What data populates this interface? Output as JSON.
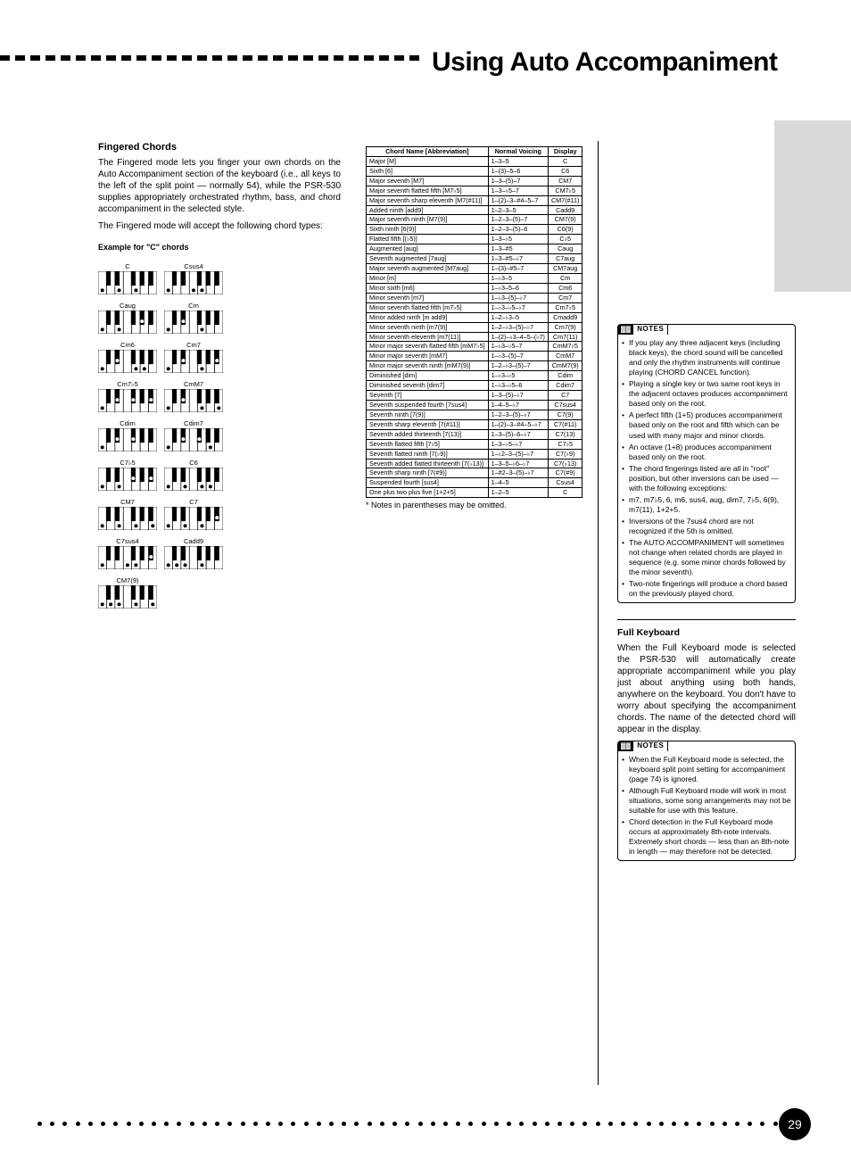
{
  "header": {
    "title": "Using Auto Accompaniment"
  },
  "left": {
    "intro_title": "Fingered Chords",
    "intro_para": "The Fingered mode lets you finger your own chords on the Auto Accompaniment section of the keyboard (i.e., all keys to the left of the split point — normally 54), while the PSR-530 supplies appropriately orchestrated rhythm, bass, and chord accompaniment in the selected style.",
    "intro2": "The Fingered mode will accept the following chord types:",
    "example_lbl": "Example for \"C\" chords",
    "chords": [
      {
        "row": [
          {
            "name": "C",
            "dots": [
              0,
              4,
              7
            ]
          },
          {
            "name": "Csus4",
            "dots": [
              0,
              5,
              7
            ]
          }
        ]
      },
      {
        "row": [
          {
            "name": "Caug",
            "dots": [
              0,
              4,
              8
            ]
          },
          {
            "name": "Cm",
            "dots": [
              0,
              3,
              7
            ]
          }
        ]
      },
      {
        "row": [
          {
            "name": "Cm6",
            "dots": [
              0,
              3,
              7,
              9
            ]
          },
          {
            "name": "Cm7",
            "dots": [
              0,
              3,
              7,
              10
            ]
          }
        ]
      },
      {
        "row": [
          {
            "name": "Cm7♭5",
            "dots": [
              0,
              3,
              6,
              10
            ]
          },
          {
            "name": "CmM7",
            "dots": [
              0,
              3,
              7,
              11
            ]
          }
        ]
      },
      {
        "row": [
          {
            "name": "Cdim",
            "dots": [
              0,
              3,
              6
            ]
          },
          {
            "name": "Cdim7",
            "dots": [
              0,
              3,
              6,
              9
            ]
          }
        ]
      },
      {
        "row": [
          {
            "name": "C7♭5",
            "dots": [
              0,
              4,
              6,
              10
            ]
          },
          {
            "name": "C6",
            "dots": [
              0,
              4,
              7,
              9
            ]
          }
        ]
      },
      {
        "row": [
          {
            "name": "CM7",
            "dots": [
              0,
              4,
              7,
              11
            ]
          },
          {
            "name": "C7",
            "dots": [
              0,
              4,
              7,
              10
            ]
          }
        ]
      },
      {
        "row": [
          {
            "name": "C7sus4",
            "dots": [
              0,
              5,
              7,
              10
            ]
          },
          {
            "name": "Cadd9",
            "dots": [
              0,
              2,
              4,
              7
            ]
          }
        ]
      },
      {
        "row": [
          {
            "name": "CM7(9)",
            "dots": [
              0,
              2,
              4,
              7,
              11
            ]
          }
        ]
      }
    ]
  },
  "mid": {
    "tbl_hdr": [
      "Chord Name [Abbreviation]",
      "Normal Voicing",
      "Display"
    ],
    "tbl": [
      [
        "Major [M]",
        "1–3–5",
        "C"
      ],
      [
        "Sixth [6]",
        "1–(3)–5–6",
        "C6"
      ],
      [
        "Major seventh [M7]",
        "1–3–(5)–7",
        "CM7"
      ],
      [
        "Major seventh flatted fifth [M7♭5]",
        "1–3–♭5–7",
        "CM7♭5"
      ],
      [
        "Major seventh sharp eleventh [M7(#11)]",
        "1–(2)–3–#4–5–7",
        "CM7(#11)"
      ],
      [
        "Added ninth [add9]",
        "1–2–3–5",
        "Cadd9"
      ],
      [
        "Major seventh ninth [M7(9)]",
        "1–2–3–(5)–7",
        "CM7(9)"
      ],
      [
        "Sixth ninth [6(9)]",
        "1–2–3–(5)–6",
        "C6(9)"
      ],
      [
        "Flatted fifth [(♭5)]",
        "1–3–♭5",
        "C♭5"
      ],
      [
        "Augmented [aug]",
        "1–3–#5",
        "Caug"
      ],
      [
        "Seventh augmented [7aug]",
        "1–3–#5–♭7",
        "C7aug"
      ],
      [
        "Major seventh augmented [M7aug]",
        "1–(3)–#5–7",
        "CM7aug"
      ],
      [
        "Minor [m]",
        "1–♭3–5",
        "Cm"
      ],
      [
        "Minor sixth [m6]",
        "1–♭3–5–6",
        "Cm6"
      ],
      [
        "Minor seventh [m7]",
        "1–♭3–(5)–♭7",
        "Cm7"
      ],
      [
        "Minor seventh flatted fifth [m7♭5]",
        "1–♭3–♭5–♭7",
        "Cm7♭5"
      ],
      [
        "Minor added ninth [m add9]",
        "1–2–♭3–5",
        "Cmadd9"
      ],
      [
        "Minor seventh ninth [m7(9)]",
        "1–2–♭3–(5)–♭7",
        "Cm7(9)"
      ],
      [
        "Minor seventh eleventh [m7(11)]",
        "1–(2)–♭3–4–5–(♭7)",
        "Cm7(11)"
      ],
      [
        "Minor major seventh flatted fifth [mM7♭5]",
        "1–♭3–♭5–7",
        "CmM7♭5"
      ],
      [
        "Minor major seventh [mM7]",
        "1–♭3–(5)–7",
        "CmM7"
      ],
      [
        "Minor major seventh ninth [mM7(9)]",
        "1–2–♭3–(5)–7",
        "CmM7(9)"
      ],
      [
        "Diminished [dim]",
        "1–♭3–♭5",
        "Cdim"
      ],
      [
        "Diminished seventh [dim7]",
        "1–♭3–♭5–6",
        "Cdim7"
      ],
      [
        "Seventh [7]",
        "1–3–(5)–♭7",
        "C7"
      ],
      [
        "Seventh suspended fourth [7sus4]",
        "1–4–5–♭7",
        "C7sus4"
      ],
      [
        "Seventh ninth [7(9)]",
        "1–2–3–(5)–♭7",
        "C7(9)"
      ],
      [
        "Seventh sharp eleventh [7(#11)]",
        "1–(2)–3–#4–5–♭7",
        "C7(#11)"
      ],
      [
        "Seventh added thirteenth [7(13)]",
        "1–3–(5)–6–♭7",
        "C7(13)"
      ],
      [
        "Seventh flatted fifth [7♭5]",
        "1–3–♭5–♭7",
        "C7♭5"
      ],
      [
        "Seventh flatted ninth [7(♭9)]",
        "1–♭2–3–(5)–♭7",
        "C7(♭9)"
      ],
      [
        "Seventh added flatted thirteenth [7(♭13)]",
        "1–3–5–♭6–♭7",
        "C7(♭13)"
      ],
      [
        "Seventh sharp ninth [7(#9)]",
        "1–#2–3–(5)–♭7",
        "C7(#9)"
      ],
      [
        "Suspended fourth [sus4]",
        "1–4–5",
        "Csus4"
      ],
      [
        "One plus two plus five [1+2+5]",
        "1–2–5",
        "C"
      ]
    ],
    "foot": "* Notes in parentheses may be omitted."
  },
  "right": {
    "notes1": {
      "items": [
        "If you play any three adjacent keys (including black keys), the chord sound will be cancelled and only the rhythm instruments will continue playing (CHORD CANCEL function).",
        "Playing a single key or two same root keys in the adjacent octaves produces accompaniment based only on the root.",
        "A perfect fifth (1+5) produces accompaniment based only on the root and fifth which can be used with many major and minor chords.",
        "An octave (1+8) produces accompaniment based only on the root.",
        "The chord fingerings listed are all in \"root\" position, but other inversions can be used — with the following exceptions:",
        "m7, m7♭5, 6, m6, sus4, aug, dim7, 7♭5, 6(9), m7(11), 1+2+5.",
        "Inversions of the 7sus4 chord are not recognized if the 5th is omitted.",
        "The AUTO ACCOMPANIMENT will sometimes not change when related chords are played in sequence (e.g. some minor chords followed by the minor seventh).",
        "Two-note fingerings will produce a chord based on the previously played chord."
      ]
    },
    "sect2_title": "Full Keyboard",
    "sect2_para": "When the Full Keyboard mode is selected the PSR-530 will automatically create appropriate accompaniment while you play just about anything using both hands, anywhere on the keyboard. You don't have to worry about specifying the accompaniment chords. The name of the detected chord will appear in the display.",
    "notes2": {
      "items": [
        "When the Full Keyboard mode is selected, the keyboard split point setting for accompaniment (page 74) is ignored.",
        "Although Full Keyboard mode will work in most situations, some song arrangements may not be suitable for use with this feature.",
        "Chord detection in the Full Keyboard mode occurs at approximately 8th-note intervals. Extremely short chords — less than an 8th-note in length — may therefore not be detected."
      ]
    }
  },
  "footer": {
    "page": "29"
  },
  "styles": {
    "kbd_w": 66,
    "kbd_h": 26,
    "dash_count": 28,
    "dot_count": 60
  }
}
